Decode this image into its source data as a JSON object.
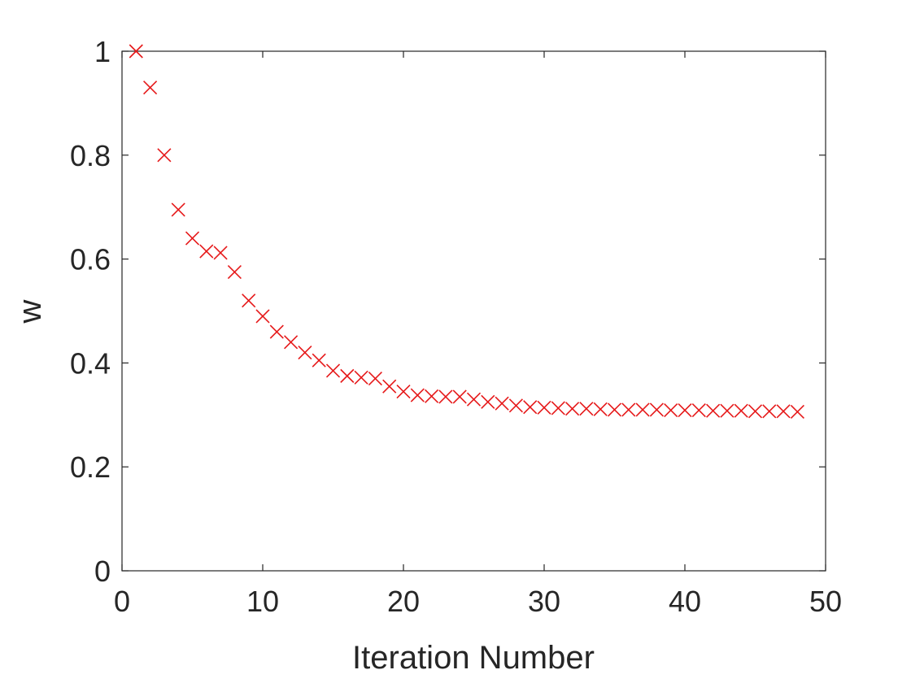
{
  "chart_data": {
    "type": "scatter",
    "title": "",
    "xlabel": "Iteration Number",
    "ylabel": "w",
    "xlim": [
      0,
      50
    ],
    "ylim": [
      0,
      1
    ],
    "x_ticks": [
      "0",
      "10",
      "20",
      "30",
      "40",
      "50"
    ],
    "y_ticks": [
      "0",
      "0.2",
      "0.4",
      "0.6",
      "0.8",
      "1"
    ],
    "grid": false,
    "legend": "none",
    "marker": "x",
    "marker_color": "#e6191a",
    "series": [
      {
        "x": [
          1,
          2,
          3,
          4,
          5,
          6,
          7,
          8,
          9,
          10,
          11,
          12,
          13,
          14,
          15,
          16,
          17,
          18,
          19,
          20,
          21,
          22,
          23,
          24,
          25,
          26,
          27,
          28,
          29,
          30,
          31,
          32,
          33,
          34,
          35,
          36,
          37,
          38,
          39,
          40,
          41,
          42,
          43,
          44,
          45,
          46,
          47,
          48
        ],
        "y": [
          1.0,
          0.93,
          0.8,
          0.695,
          0.64,
          0.615,
          0.612,
          0.575,
          0.52,
          0.49,
          0.46,
          0.44,
          0.42,
          0.405,
          0.385,
          0.375,
          0.372,
          0.37,
          0.355,
          0.345,
          0.338,
          0.336,
          0.335,
          0.335,
          0.33,
          0.325,
          0.322,
          0.318,
          0.315,
          0.314,
          0.313,
          0.312,
          0.312,
          0.311,
          0.31,
          0.31,
          0.31,
          0.31,
          0.309,
          0.309,
          0.309,
          0.308,
          0.308,
          0.308,
          0.307,
          0.307,
          0.307,
          0.306
        ]
      }
    ]
  }
}
